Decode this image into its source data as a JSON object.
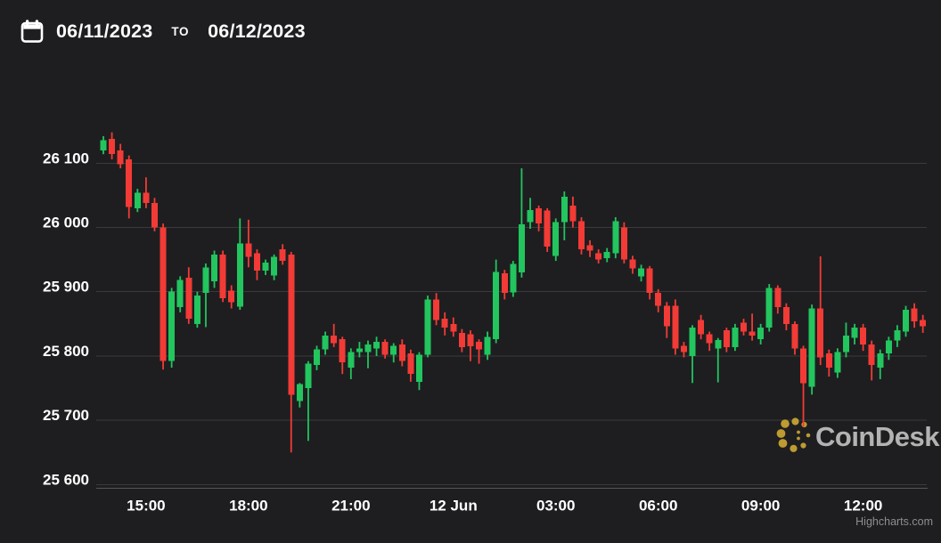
{
  "header": {
    "date_from": "06/11/2023",
    "separator": "TO",
    "date_to": "06/12/2023"
  },
  "watermark": {
    "text": "CoinDesk",
    "icon_color": "#BE9B30",
    "text_color": "#B3B3B3"
  },
  "credits": {
    "text": "Highcharts.com",
    "color": "#8E8E8E"
  },
  "chart_data": {
    "type": "candlestick",
    "title": "",
    "xlabel": "",
    "ylabel": "",
    "interval": "15m",
    "grid": "horizontal-only",
    "legend": "none",
    "ylim": [
      25600,
      26160
    ],
    "colors": {
      "up": "#22C55E",
      "down": "#F23B36",
      "grid": "#3A3A3E",
      "axis": "#56565A",
      "label": "#FFFFFF",
      "background": "#1E1E20"
    },
    "y_axis": {
      "ticks": [
        {
          "label": "26 100",
          "value": 26100
        },
        {
          "label": "26 000",
          "value": 26000
        },
        {
          "label": "25 900",
          "value": 25900
        },
        {
          "label": "25 800",
          "value": 25800
        },
        {
          "label": "25 700",
          "value": 25700
        },
        {
          "label": "25 600",
          "value": 25600
        }
      ]
    },
    "x_axis": {
      "ticks": [
        {
          "label": "15:00",
          "index": 5
        },
        {
          "label": "18:00",
          "index": 17
        },
        {
          "label": "21:00",
          "index": 29
        },
        {
          "label": "12 Jun",
          "index": 41
        },
        {
          "label": "03:00",
          "index": 53
        },
        {
          "label": "06:00",
          "index": 65
        },
        {
          "label": "09:00",
          "index": 77
        },
        {
          "label": "12:00",
          "index": 89
        }
      ]
    },
    "candles_format": [
      "open",
      "high",
      "low",
      "close"
    ],
    "candles": [
      [
        26120,
        26142,
        26114,
        26136
      ],
      [
        26138,
        26148,
        26106,
        26114
      ],
      [
        26120,
        26130,
        26092,
        26098
      ],
      [
        26106,
        26112,
        26014,
        26032
      ],
      [
        26030,
        26060,
        26024,
        26054
      ],
      [
        26054,
        26078,
        26030,
        26038
      ],
      [
        26038,
        26046,
        25994,
        26000
      ],
      [
        26000,
        26006,
        25779,
        25792
      ],
      [
        25792,
        25906,
        25782,
        25900
      ],
      [
        25876,
        25924,
        25868,
        25918
      ],
      [
        25922,
        25938,
        25850,
        25858
      ],
      [
        25850,
        25900,
        25844,
        25894
      ],
      [
        25898,
        25944,
        25845,
        25938
      ],
      [
        25916,
        25964,
        25906,
        25958
      ],
      [
        25958,
        25964,
        25884,
        25890
      ],
      [
        25902,
        25910,
        25874,
        25884
      ],
      [
        25877,
        26014,
        25872,
        25975
      ],
      [
        25975,
        26012,
        25938,
        25954
      ],
      [
        25960,
        25966,
        25918,
        25933
      ],
      [
        25933,
        25950,
        25926,
        25945
      ],
      [
        25925,
        25958,
        25918,
        25954
      ],
      [
        25966,
        25974,
        25942,
        25948
      ],
      [
        25958,
        25962,
        25650,
        25740
      ],
      [
        25730,
        25758,
        25720,
        25756
      ],
      [
        25750,
        25792,
        25668,
        25788
      ],
      [
        25786,
        25816,
        25778,
        25810
      ],
      [
        25810,
        25838,
        25802,
        25832
      ],
      [
        25832,
        25850,
        25814,
        25820
      ],
      [
        25826,
        25830,
        25772,
        25790
      ],
      [
        25782,
        25812,
        25764,
        25806
      ],
      [
        25806,
        25822,
        25798,
        25812
      ],
      [
        25806,
        25824,
        25781,
        25818
      ],
      [
        25812,
        25830,
        25800,
        25822
      ],
      [
        25822,
        25826,
        25796,
        25802
      ],
      [
        25802,
        25820,
        25790,
        25816
      ],
      [
        25818,
        25826,
        25784,
        25792
      ],
      [
        25804,
        25810,
        25760,
        25772
      ],
      [
        25760,
        25806,
        25747,
        25802
      ],
      [
        25802,
        25894,
        25798,
        25888
      ],
      [
        25888,
        25898,
        25848,
        25856
      ],
      [
        25858,
        25868,
        25832,
        25844
      ],
      [
        25850,
        25860,
        25830,
        25838
      ],
      [
        25836,
        25842,
        25806,
        25814
      ],
      [
        25834,
        25840,
        25792,
        25815
      ],
      [
        25822,
        25826,
        25788,
        25810
      ],
      [
        25802,
        25838,
        25794,
        25830
      ],
      [
        25826,
        25950,
        25820,
        25931
      ],
      [
        25929,
        25934,
        25888,
        25898
      ],
      [
        25899,
        25948,
        25892,
        25943
      ],
      [
        25930,
        26092,
        25922,
        26005
      ],
      [
        26008,
        26046,
        25998,
        26027
      ],
      [
        26030,
        26034,
        25994,
        26006
      ],
      [
        26026,
        26030,
        25962,
        25970
      ],
      [
        25956,
        26014,
        25948,
        26008
      ],
      [
        26008,
        26056,
        25980,
        26048
      ],
      [
        26034,
        26048,
        26000,
        26010
      ],
      [
        26010,
        26016,
        25958,
        25966
      ],
      [
        25972,
        25980,
        25954,
        25964
      ],
      [
        25960,
        25966,
        25944,
        25950
      ],
      [
        25952,
        25968,
        25946,
        25962
      ],
      [
        25960,
        26016,
        25952,
        26010
      ],
      [
        26000,
        26008,
        25944,
        25950
      ],
      [
        25950,
        25956,
        25928,
        25936
      ],
      [
        25924,
        25942,
        25916,
        25936
      ],
      [
        25936,
        25940,
        25888,
        25898
      ],
      [
        25898,
        25904,
        25868,
        25878
      ],
      [
        25878,
        25884,
        25828,
        25846
      ],
      [
        25878,
        25888,
        25802,
        25812
      ],
      [
        25816,
        25822,
        25798,
        25806
      ],
      [
        25800,
        25848,
        25758,
        25844
      ],
      [
        25856,
        25864,
        25826,
        25834
      ],
      [
        25834,
        25838,
        25808,
        25820
      ],
      [
        25812,
        25828,
        25759,
        25825
      ],
      [
        25840,
        25844,
        25806,
        25814
      ],
      [
        25814,
        25850,
        25808,
        25844
      ],
      [
        25852,
        25858,
        25832,
        25838
      ],
      [
        25838,
        25866,
        25824,
        25832
      ],
      [
        25826,
        25850,
        25818,
        25844
      ],
      [
        25844,
        25912,
        25838,
        25906
      ],
      [
        25906,
        25910,
        25866,
        25876
      ],
      [
        25876,
        25882,
        25840,
        25850
      ],
      [
        25850,
        25854,
        25802,
        25812
      ],
      [
        25812,
        25816,
        25690,
        25758
      ],
      [
        25752,
        25880,
        25740,
        25874
      ],
      [
        25874,
        25955,
        25786,
        25798
      ],
      [
        25804,
        25810,
        25768,
        25782
      ],
      [
        25774,
        25812,
        25766,
        25806
      ],
      [
        25806,
        25852,
        25798,
        25832
      ],
      [
        25828,
        25850,
        25818,
        25844
      ],
      [
        25844,
        25850,
        25808,
        25818
      ],
      [
        25818,
        25824,
        25762,
        25786
      ],
      [
        25782,
        25810,
        25764,
        25804
      ],
      [
        25804,
        25830,
        25794,
        25824
      ],
      [
        25824,
        25848,
        25814,
        25840
      ],
      [
        25838,
        25878,
        25830,
        25872
      ],
      [
        25874,
        25882,
        25844,
        25854
      ],
      [
        25856,
        25864,
        25836,
        25846
      ]
    ]
  }
}
